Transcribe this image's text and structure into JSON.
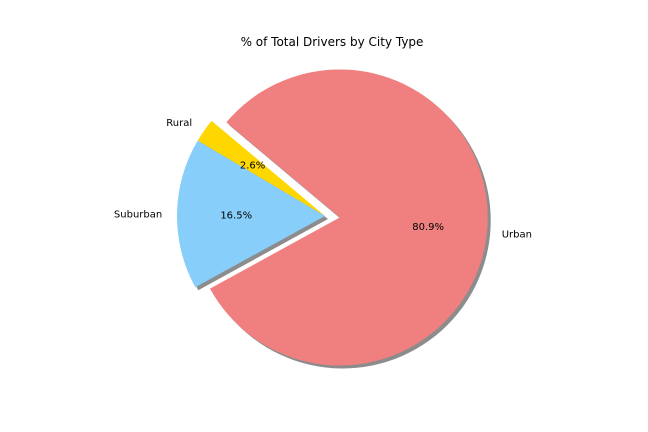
{
  "chart_data": {
    "type": "pie",
    "title": "% of Total Drivers by City Type",
    "start_angle_deg": 140,
    "shadow": true,
    "slices": [
      {
        "label": "Rural",
        "value": 2.6,
        "pct_label": "2.6%",
        "color": "#ffd700",
        "explode": 0.0
      },
      {
        "label": "Suburban",
        "value": 16.5,
        "pct_label": "16.5%",
        "color": "#87cefa",
        "explode": 0.0
      },
      {
        "label": "Urban",
        "value": 80.9,
        "pct_label": "80.9%",
        "color": "#f08080",
        "explode": 0.1
      }
    ]
  }
}
